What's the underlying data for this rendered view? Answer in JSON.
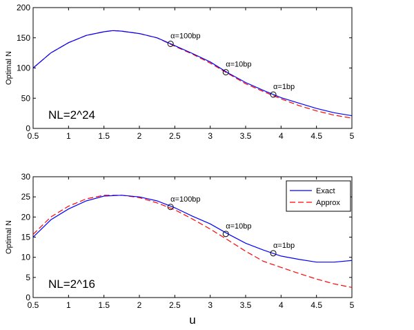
{
  "chart_data": [
    {
      "type": "line",
      "ylabel": "Optimal N",
      "xlabel": "",
      "annotation": "NL=2^24",
      "xlim": [
        0.5,
        5
      ],
      "ylim": [
        0,
        200
      ],
      "xticks": [
        0.5,
        1,
        1.5,
        2,
        2.5,
        3,
        3.5,
        4,
        4.5,
        5
      ],
      "yticks": [
        0,
        50,
        100,
        150,
        200
      ],
      "grid": false,
      "series": [
        {
          "name": "Exact",
          "color": "#0000ff",
          "style": "solid",
          "x": [
            0.5,
            0.75,
            1,
            1.25,
            1.5,
            1.625,
            1.75,
            2,
            2.25,
            2.5,
            2.75,
            3,
            3.25,
            3.5,
            3.75,
            4,
            4.25,
            4.5,
            4.75,
            5
          ],
          "y": [
            100,
            125,
            142,
            154,
            160,
            162,
            161,
            157,
            150,
            137,
            124,
            110,
            92,
            76,
            63,
            51,
            42,
            33,
            26,
            21
          ]
        },
        {
          "name": "Approx",
          "color": "#ff0000",
          "style": "dashed",
          "x": [
            0.5,
            0.75,
            1,
            1.25,
            1.5,
            1.625,
            1.75,
            2,
            2.25,
            2.5,
            2.75,
            3,
            3.25,
            3.5,
            3.75,
            4,
            4.25,
            4.5,
            4.75,
            5
          ],
          "y": [
            100,
            125,
            142,
            154,
            160,
            162,
            161,
            157,
            150,
            136,
            123,
            108,
            91,
            74,
            61,
            49,
            38,
            29,
            22,
            17
          ]
        }
      ],
      "markers": [
        {
          "x": 2.44,
          "y": 140,
          "label": "α=100bp"
        },
        {
          "x": 3.22,
          "y": 93,
          "label": "α=10bp"
        },
        {
          "x": 3.89,
          "y": 56,
          "label": "α=1bp"
        }
      ]
    },
    {
      "type": "line",
      "ylabel": "Optimal N",
      "xlabel": "u",
      "annotation": "NL=2^16",
      "xlim": [
        0.5,
        5
      ],
      "ylim": [
        0,
        30
      ],
      "xticks": [
        0.5,
        1,
        1.5,
        2,
        2.5,
        3,
        3.5,
        4,
        4.5,
        5
      ],
      "yticks": [
        0,
        5,
        10,
        15,
        20,
        25,
        30
      ],
      "grid": false,
      "legend": "top-right",
      "series": [
        {
          "name": "Exact",
          "color": "#0000ff",
          "style": "solid",
          "x": [
            0.5,
            0.75,
            1,
            1.25,
            1.5,
            1.75,
            2,
            2.25,
            2.5,
            2.75,
            3,
            3.25,
            3.5,
            3.75,
            4,
            4.25,
            4.5,
            4.75,
            5
          ],
          "y": [
            15,
            19.3,
            22,
            24,
            25.2,
            25.4,
            25,
            24,
            22.3,
            20.2,
            18.3,
            15.8,
            13.5,
            11.8,
            10.3,
            9.5,
            8.8,
            8.8,
            9.2
          ]
        },
        {
          "name": "Approx",
          "color": "#ff0000",
          "style": "dashed",
          "x": [
            0.5,
            0.75,
            1,
            1.25,
            1.5,
            1.75,
            2,
            2.25,
            2.5,
            2.75,
            3,
            3.25,
            3.5,
            3.75,
            4,
            4.25,
            4.5,
            4.75,
            5
          ],
          "y": [
            15.7,
            20,
            22.7,
            24.5,
            25.4,
            25.4,
            24.8,
            23.5,
            21.8,
            19.5,
            17,
            14.3,
            11.5,
            9,
            7.5,
            6,
            4.6,
            3.4,
            2.5
          ]
        }
      ],
      "markers": [
        {
          "x": 2.44,
          "y": 22.5,
          "label": "α=100bp"
        },
        {
          "x": 3.22,
          "y": 15.8,
          "label": "α=10bp"
        },
        {
          "x": 3.89,
          "y": 11,
          "label": "α=1bp"
        }
      ]
    }
  ]
}
